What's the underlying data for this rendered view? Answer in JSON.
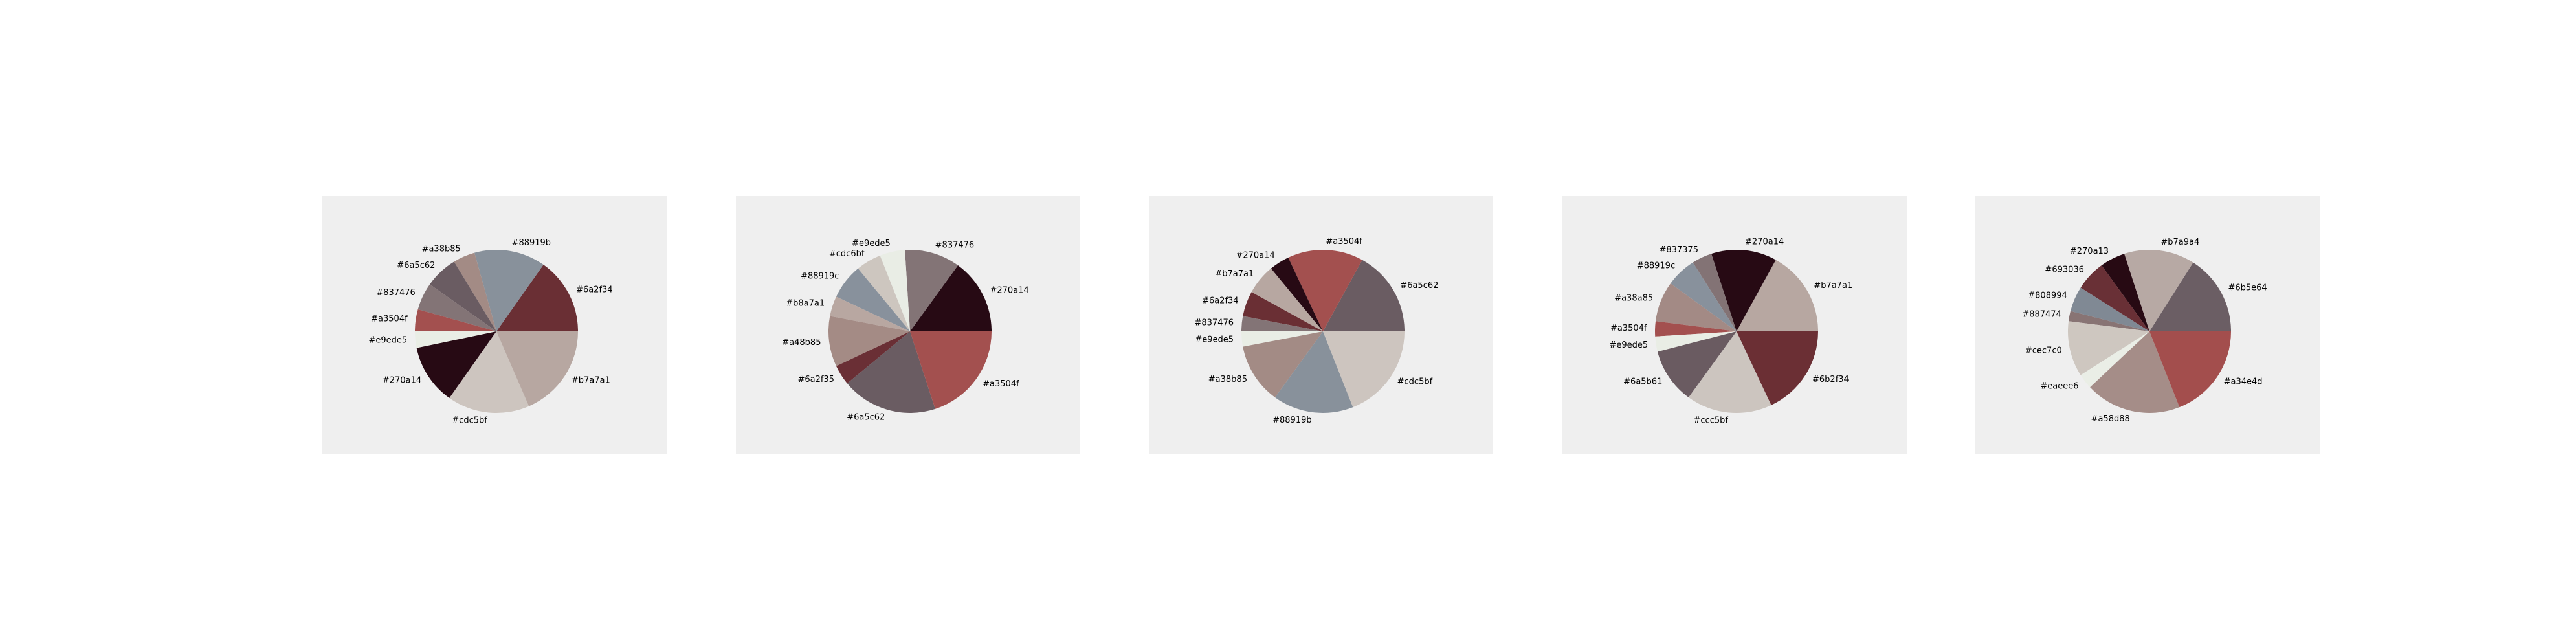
{
  "chart_data": [
    {
      "type": "pie",
      "slices": [
        {
          "label": "#6a2f34",
          "value": 14.0,
          "color": "#6a2f34"
        },
        {
          "label": "#88919b",
          "value": 13.0,
          "color": "#88919b"
        },
        {
          "label": "#a38b85",
          "value": 4.0,
          "color": "#a38b85"
        },
        {
          "label": "#6a5c62",
          "value": 6.0,
          "color": "#6a5c62"
        },
        {
          "label": "#837476",
          "value": 5.0,
          "color": "#837476"
        },
        {
          "label": "#a3504f",
          "value": 4.0,
          "color": "#a3504f"
        },
        {
          "label": "#e9ede5",
          "value": 3.0,
          "color": "#e9ede5"
        },
        {
          "label": "#270a14",
          "value": 11.0,
          "color": "#270a14"
        },
        {
          "label": "#cdc5bf",
          "value": 15.0,
          "color": "#cdc5bf"
        },
        {
          "label": "#b7a7a1",
          "value": 17.0,
          "color": "#b7a7a1"
        }
      ]
    },
    {
      "type": "pie",
      "slices": [
        {
          "label": "#270a14",
          "value": 15.0,
          "color": "#270a14"
        },
        {
          "label": "#837476",
          "value": 11.0,
          "color": "#837476"
        },
        {
          "label": "#e9ede5",
          "value": 5.0,
          "color": "#e9ede5"
        },
        {
          "label": "#cdc6bf",
          "value": 5.0,
          "color": "#cdc6bf"
        },
        {
          "label": "#88919c",
          "value": 7.0,
          "color": "#88919c"
        },
        {
          "label": "#b8a7a1",
          "value": 4.0,
          "color": "#b8a7a1"
        },
        {
          "label": "#a48b85",
          "value": 10.0,
          "color": "#a48b85"
        },
        {
          "label": "#6a2f35",
          "value": 4.0,
          "color": "#6a2f35"
        },
        {
          "label": "#6a5c62",
          "value": 19.0,
          "color": "#6a5c62"
        },
        {
          "label": "#a3504f",
          "value": 20.0,
          "color": "#a3504f"
        }
      ]
    },
    {
      "type": "pie",
      "slices": [
        {
          "label": "#6a5c62",
          "value": 17.0,
          "color": "#6a5c62"
        },
        {
          "label": "#a3504f",
          "value": 15.0,
          "color": "#a3504f"
        },
        {
          "label": "#270a14",
          "value": 4.0,
          "color": "#270a14"
        },
        {
          "label": "#b7a7a1",
          "value": 6.0,
          "color": "#b7a7a1"
        },
        {
          "label": "#6a2f34",
          "value": 5.0,
          "color": "#6a2f34"
        },
        {
          "label": "#837476",
          "value": 3.0,
          "color": "#837476"
        },
        {
          "label": "#e9ede5",
          "value": 3.0,
          "color": "#e9ede5"
        },
        {
          "label": "#a38b85",
          "value": 12.0,
          "color": "#a38b85"
        },
        {
          "label": "#88919b",
          "value": 16.0,
          "color": "#88919b"
        },
        {
          "label": "#cdc5bf",
          "value": 19.0,
          "color": "#cdc5bf"
        }
      ]
    },
    {
      "type": "pie",
      "slices": [
        {
          "label": "#b7a7a1",
          "value": 17.0,
          "color": "#b7a7a1"
        },
        {
          "label": "#270a14",
          "value": 13.0,
          "color": "#270a14"
        },
        {
          "label": "#837375",
          "value": 4.0,
          "color": "#837375"
        },
        {
          "label": "#88919c",
          "value": 6.0,
          "color": "#88919c"
        },
        {
          "label": "#a38a85",
          "value": 8.0,
          "color": "#a38a85"
        },
        {
          "label": "#a3504f",
          "value": 3.0,
          "color": "#a3504f"
        },
        {
          "label": "#e9ede5",
          "value": 3.0,
          "color": "#e9ede5"
        },
        {
          "label": "#6a5b61",
          "value": 11.0,
          "color": "#6a5b61"
        },
        {
          "label": "#ccc5bf",
          "value": 17.0,
          "color": "#ccc5bf"
        },
        {
          "label": "#6b2f34",
          "value": 18.0,
          "color": "#6b2f34"
        }
      ]
    },
    {
      "type": "pie",
      "slices": [
        {
          "label": "#6b5e64",
          "value": 16.0,
          "color": "#6b5e64"
        },
        {
          "label": "#b7a9a4",
          "value": 14.0,
          "color": "#b7a9a4"
        },
        {
          "label": "#270a13",
          "value": 5.0,
          "color": "#270a13"
        },
        {
          "label": "#693036",
          "value": 6.0,
          "color": "#693036"
        },
        {
          "label": "#808994",
          "value": 5.0,
          "color": "#808994"
        },
        {
          "label": "#887474",
          "value": 2.0,
          "color": "#887474"
        },
        {
          "label": "#cec7c0",
          "value": 11.0,
          "color": "#cec7c0"
        },
        {
          "label": "#eaeee6",
          "value": 3.0,
          "color": "#eaeee6"
        },
        {
          "label": "#a58d88",
          "value": 19.0,
          "color": "#a58d88"
        },
        {
          "label": "#a34e4d",
          "value": 19.0,
          "color": "#a34e4d"
        }
      ]
    }
  ]
}
